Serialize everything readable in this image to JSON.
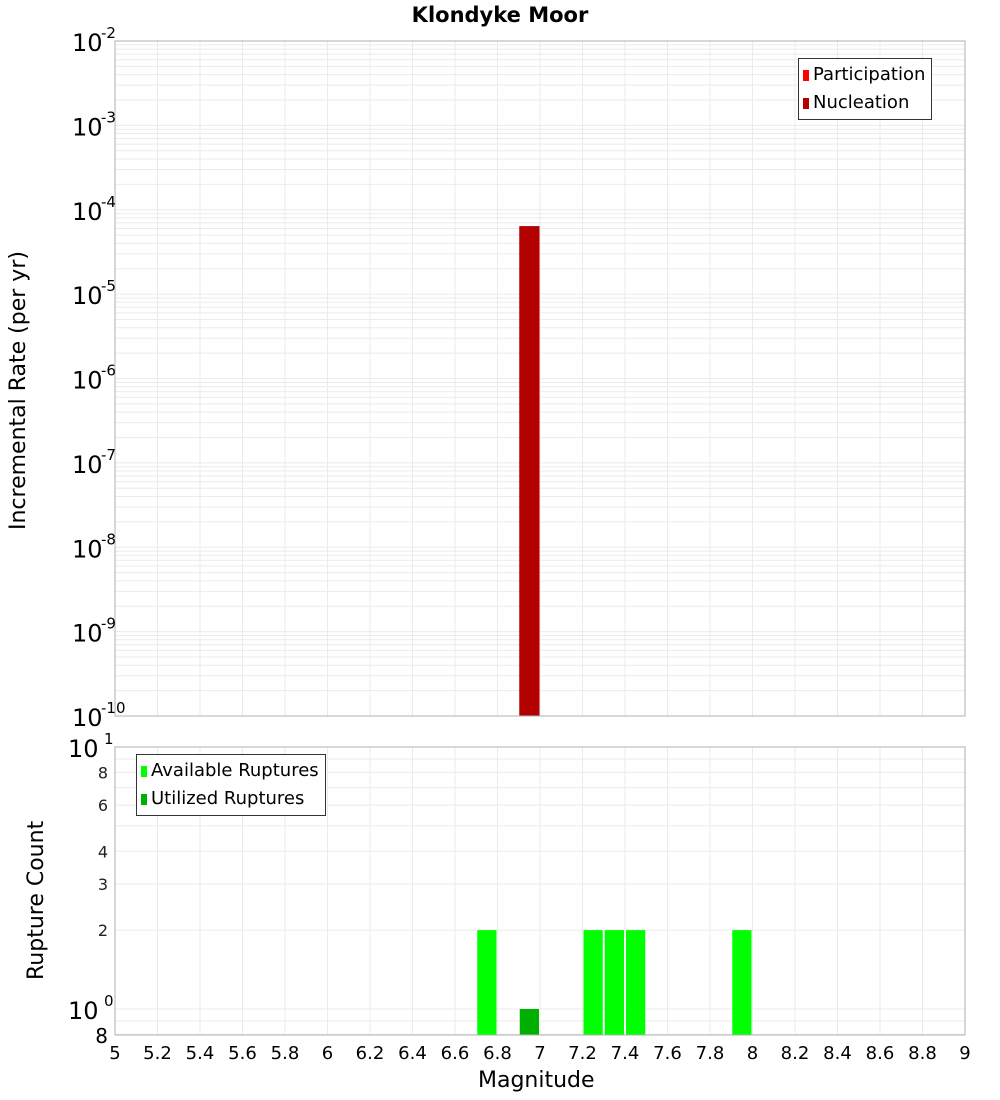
{
  "title": "Klondyke Moor",
  "colors": {
    "participation": "#ff0000",
    "nucleation": "#b30000",
    "available": "#00ff00",
    "utilized": "#00b000",
    "grid": "#ebebeb",
    "axis": "#b0b0b0"
  },
  "top_panel": {
    "ylabel": "Incremental Rate (per yr)",
    "legend": [
      {
        "label": "Participation",
        "color_key": "participation"
      },
      {
        "label": "Nucleation",
        "color_key": "nucleation"
      }
    ]
  },
  "bottom_panel": {
    "ylabel": "Rupture Count",
    "legend": [
      {
        "label": "Available Ruptures",
        "color_key": "available"
      },
      {
        "label": "Utilized Ruptures",
        "color_key": "utilized"
      }
    ]
  },
  "xlabel": "Magnitude",
  "chart_data": [
    {
      "type": "bar",
      "title": "Klondyke Moor",
      "xlabel": "Magnitude",
      "ylabel": "Incremental Rate (per yr)",
      "yscale": "log",
      "xlim": [
        5,
        9
      ],
      "ylim": [
        1e-10,
        0.01
      ],
      "xticks": [
        "5",
        "5.2",
        "5.4",
        "5.6",
        "5.8",
        "6",
        "6.2",
        "6.4",
        "6.6",
        "6.8",
        "7",
        "7.2",
        "7.4",
        "7.6",
        "7.8",
        "8",
        "8.2",
        "8.4",
        "8.6",
        "8.8",
        "9"
      ],
      "yticks": [
        "10^-2",
        "10^-3",
        "10^-4",
        "10^-5",
        "10^-6",
        "10^-7",
        "10^-8",
        "10^-9",
        "10^-10"
      ],
      "grid": true,
      "legend_position": "top-right",
      "bar_width": 0.1,
      "series": [
        {
          "name": "Participation",
          "color": "#ff0000",
          "points": []
        },
        {
          "name": "Nucleation",
          "color": "#b30000",
          "points": [
            {
              "x": 6.95,
              "y": 6.4e-05
            }
          ]
        }
      ]
    },
    {
      "type": "bar",
      "xlabel": "Magnitude",
      "ylabel": "Rupture Count",
      "yscale": "log",
      "xlim": [
        5,
        9
      ],
      "ylim": [
        0.8,
        10
      ],
      "yticks": [
        "10^1",
        "8",
        "6",
        "4",
        "3",
        "2",
        "10^0",
        "8"
      ],
      "grid": true,
      "legend_position": "top-left",
      "bar_width": 0.1,
      "series": [
        {
          "name": "Available Ruptures",
          "color": "#00ff00",
          "points": [
            {
              "x": 6.75,
              "y": 2
            },
            {
              "x": 7.25,
              "y": 2
            },
            {
              "x": 7.35,
              "y": 2
            },
            {
              "x": 7.45,
              "y": 2
            },
            {
              "x": 7.95,
              "y": 2
            }
          ]
        },
        {
          "name": "Utilized Ruptures",
          "color": "#00b000",
          "points": [
            {
              "x": 6.95,
              "y": 1
            }
          ]
        }
      ]
    }
  ]
}
